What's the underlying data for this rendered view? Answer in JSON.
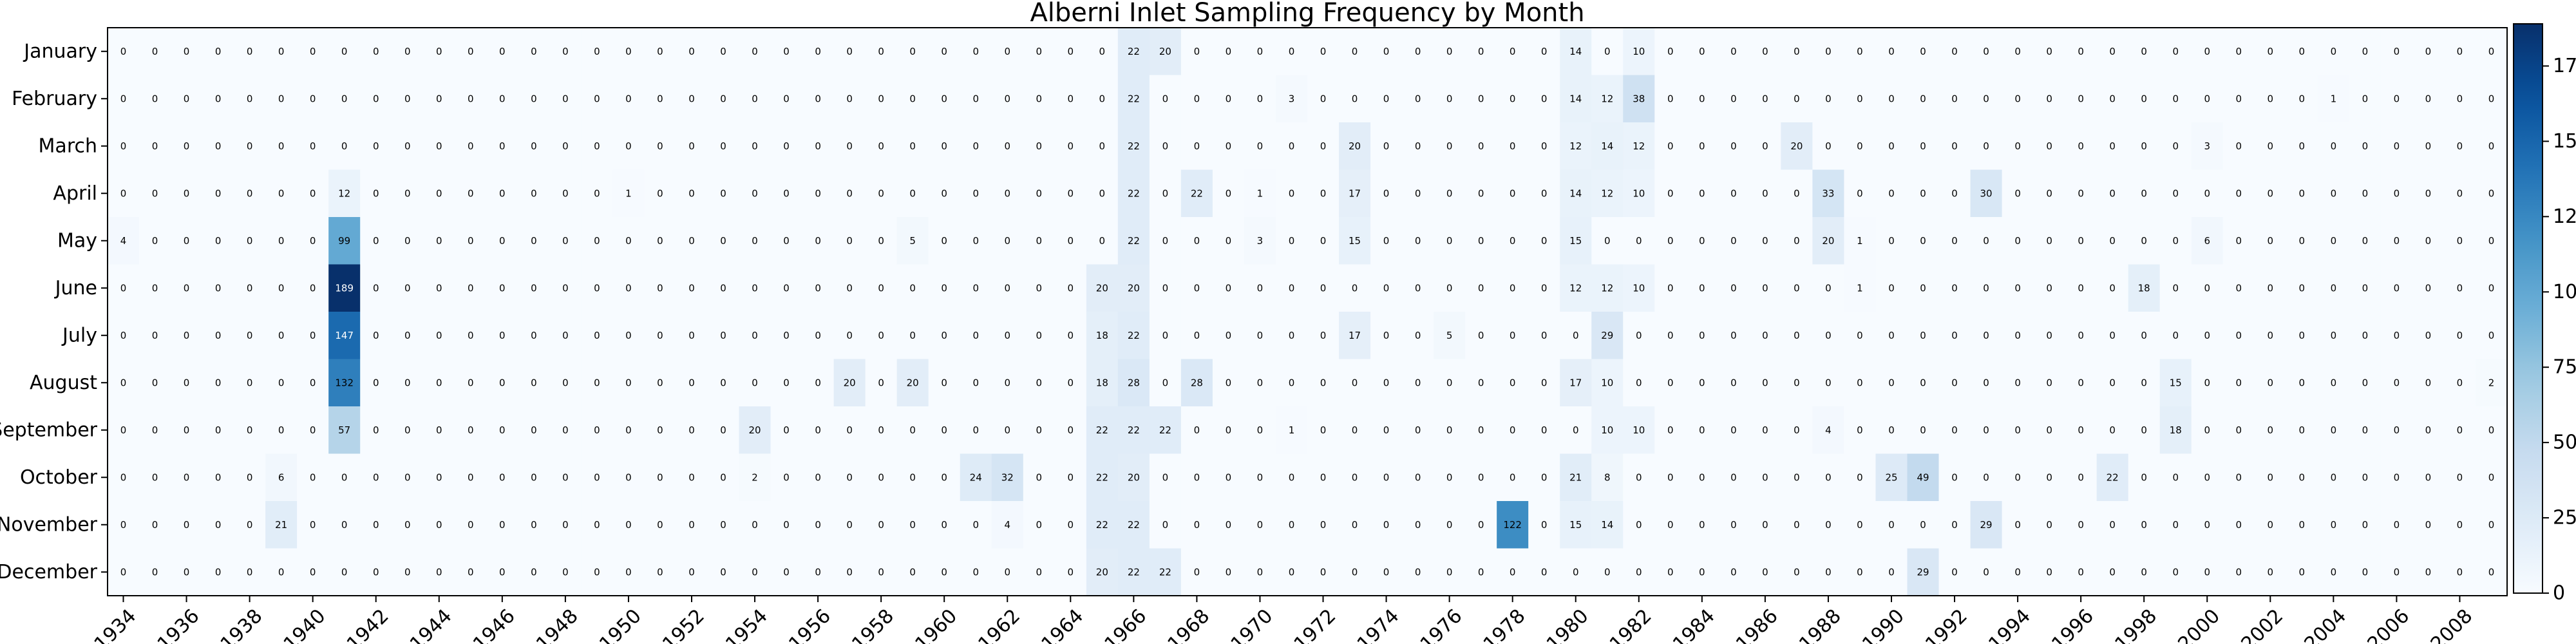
{
  "chart_data": {
    "type": "heatmap",
    "title": "Alberni Inlet Sampling Frequency by Month",
    "xlabel": "",
    "ylabel": "",
    "colormap": "Blues",
    "colorbar": {
      "min": 0,
      "max": 189,
      "ticks": [
        0,
        25,
        50,
        75,
        100,
        125,
        150,
        175
      ]
    },
    "years": [
      1934,
      1935,
      1936,
      1937,
      1938,
      1939,
      1940,
      1941,
      1942,
      1943,
      1944,
      1945,
      1946,
      1947,
      1948,
      1949,
      1950,
      1951,
      1952,
      1953,
      1954,
      1955,
      1956,
      1957,
      1958,
      1959,
      1960,
      1961,
      1962,
      1963,
      1964,
      1965,
      1966,
      1967,
      1968,
      1969,
      1970,
      1971,
      1972,
      1973,
      1974,
      1975,
      1976,
      1977,
      1978,
      1979,
      1980,
      1981,
      1982,
      1983,
      1984,
      1985,
      1986,
      1987,
      1988,
      1989,
      1990,
      1991,
      1992,
      1993,
      1994,
      1995,
      1996,
      1997,
      1998,
      1999,
      2000,
      2001,
      2002,
      2003,
      2004,
      2005,
      2006,
      2007,
      2008,
      2009
    ],
    "x_tick_labels": [
      "1934",
      "1936",
      "1938",
      "1940",
      "1942",
      "1944",
      "1946",
      "1948",
      "1950",
      "1952",
      "1954",
      "1956",
      "1958",
      "1960",
      "1962",
      "1964",
      "1966",
      "1968",
      "1970",
      "1972",
      "1974",
      "1976",
      "1978",
      "1980",
      "1982",
      "1984",
      "1986",
      "1988",
      "1990",
      "1992",
      "1994",
      "1996",
      "1998",
      "2000",
      "2002",
      "2004",
      "2006",
      "2008"
    ],
    "months": [
      "January",
      "February",
      "March",
      "April",
      "May",
      "June",
      "July",
      "August",
      "September",
      "October",
      "November",
      "December"
    ],
    "values": [
      [
        0,
        0,
        0,
        0,
        0,
        0,
        0,
        0,
        0,
        0,
        0,
        0,
        0,
        0,
        0,
        0,
        0,
        0,
        0,
        0,
        0,
        0,
        0,
        0,
        0,
        0,
        0,
        0,
        0,
        0,
        0,
        0,
        22,
        20,
        0,
        0,
        0,
        0,
        0,
        0,
        0,
        0,
        0,
        0,
        0,
        0,
        14,
        0,
        10,
        0,
        0,
        0,
        0,
        0,
        0,
        0,
        0,
        0,
        0,
        0,
        0,
        0,
        0,
        0,
        0,
        0,
        0,
        0,
        0,
        0,
        0,
        0,
        0,
        0,
        0,
        0
      ],
      [
        0,
        0,
        0,
        0,
        0,
        0,
        0,
        0,
        0,
        0,
        0,
        0,
        0,
        0,
        0,
        0,
        0,
        0,
        0,
        0,
        0,
        0,
        0,
        0,
        0,
        0,
        0,
        0,
        0,
        0,
        0,
        0,
        22,
        0,
        0,
        0,
        0,
        3,
        0,
        0,
        0,
        0,
        0,
        0,
        0,
        0,
        14,
        12,
        38,
        0,
        0,
        0,
        0,
        0,
        0,
        0,
        0,
        0,
        0,
        0,
        0,
        0,
        0,
        0,
        0,
        0,
        0,
        0,
        0,
        0,
        1,
        0,
        0,
        0,
        0,
        0
      ],
      [
        0,
        0,
        0,
        0,
        0,
        0,
        0,
        0,
        0,
        0,
        0,
        0,
        0,
        0,
        0,
        0,
        0,
        0,
        0,
        0,
        0,
        0,
        0,
        0,
        0,
        0,
        0,
        0,
        0,
        0,
        0,
        0,
        22,
        0,
        0,
        0,
        0,
        0,
        0,
        20,
        0,
        0,
        0,
        0,
        0,
        0,
        12,
        14,
        12,
        0,
        0,
        0,
        0,
        20,
        0,
        0,
        0,
        0,
        0,
        0,
        0,
        0,
        0,
        0,
        0,
        0,
        3,
        0,
        0,
        0,
        0,
        0,
        0,
        0,
        0,
        0
      ],
      [
        0,
        0,
        0,
        0,
        0,
        0,
        0,
        12,
        0,
        0,
        0,
        0,
        0,
        0,
        0,
        0,
        1,
        0,
        0,
        0,
        0,
        0,
        0,
        0,
        0,
        0,
        0,
        0,
        0,
        0,
        0,
        0,
        22,
        0,
        22,
        0,
        1,
        0,
        0,
        17,
        0,
        0,
        0,
        0,
        0,
        0,
        14,
        12,
        10,
        0,
        0,
        0,
        0,
        0,
        33,
        0,
        0,
        0,
        0,
        30,
        0,
        0,
        0,
        0,
        0,
        0,
        0,
        0,
        0,
        0,
        0,
        0,
        0,
        0,
        0,
        0
      ],
      [
        4,
        0,
        0,
        0,
        0,
        0,
        0,
        99,
        0,
        0,
        0,
        0,
        0,
        0,
        0,
        0,
        0,
        0,
        0,
        0,
        0,
        0,
        0,
        0,
        0,
        5,
        0,
        0,
        0,
        0,
        0,
        0,
        22,
        0,
        0,
        0,
        3,
        0,
        0,
        15,
        0,
        0,
        0,
        0,
        0,
        0,
        15,
        0,
        0,
        0,
        0,
        0,
        0,
        0,
        20,
        1,
        0,
        0,
        0,
        0,
        0,
        0,
        0,
        0,
        0,
        0,
        6,
        0,
        0,
        0,
        0,
        0,
        0,
        0,
        0,
        0
      ],
      [
        0,
        0,
        0,
        0,
        0,
        0,
        0,
        189,
        0,
        0,
        0,
        0,
        0,
        0,
        0,
        0,
        0,
        0,
        0,
        0,
        0,
        0,
        0,
        0,
        0,
        0,
        0,
        0,
        0,
        0,
        0,
        20,
        20,
        0,
        0,
        0,
        0,
        0,
        0,
        0,
        0,
        0,
        0,
        0,
        0,
        0,
        12,
        12,
        10,
        0,
        0,
        0,
        0,
        0,
        0,
        1,
        0,
        0,
        0,
        0,
        0,
        0,
        0,
        0,
        18,
        0,
        0,
        0,
        0,
        0,
        0,
        0,
        0,
        0,
        0,
        0
      ],
      [
        0,
        0,
        0,
        0,
        0,
        0,
        0,
        147,
        0,
        0,
        0,
        0,
        0,
        0,
        0,
        0,
        0,
        0,
        0,
        0,
        0,
        0,
        0,
        0,
        0,
        0,
        0,
        0,
        0,
        0,
        0,
        18,
        22,
        0,
        0,
        0,
        0,
        0,
        0,
        17,
        0,
        0,
        5,
        0,
        0,
        0,
        0,
        29,
        0,
        0,
        0,
        0,
        0,
        0,
        0,
        0,
        0,
        0,
        0,
        0,
        0,
        0,
        0,
        0,
        0,
        0,
        0,
        0,
        0,
        0,
        0,
        0,
        0,
        0,
        0,
        0
      ],
      [
        0,
        0,
        0,
        0,
        0,
        0,
        0,
        132,
        0,
        0,
        0,
        0,
        0,
        0,
        0,
        0,
        0,
        0,
        0,
        0,
        0,
        0,
        0,
        20,
        0,
        20,
        0,
        0,
        0,
        0,
        0,
        18,
        28,
        0,
        28,
        0,
        0,
        0,
        0,
        0,
        0,
        0,
        0,
        0,
        0,
        0,
        17,
        10,
        0,
        0,
        0,
        0,
        0,
        0,
        0,
        0,
        0,
        0,
        0,
        0,
        0,
        0,
        0,
        0,
        0,
        15,
        0,
        0,
        0,
        0,
        0,
        0,
        0,
        0,
        0,
        2
      ],
      [
        0,
        0,
        0,
        0,
        0,
        0,
        0,
        57,
        0,
        0,
        0,
        0,
        0,
        0,
        0,
        0,
        0,
        0,
        0,
        0,
        20,
        0,
        0,
        0,
        0,
        0,
        0,
        0,
        0,
        0,
        0,
        22,
        22,
        22,
        0,
        0,
        0,
        1,
        0,
        0,
        0,
        0,
        0,
        0,
        0,
        0,
        0,
        10,
        10,
        0,
        0,
        0,
        0,
        0,
        4,
        0,
        0,
        0,
        0,
        0,
        0,
        0,
        0,
        0,
        0,
        18,
        0,
        0,
        0,
        0,
        0,
        0,
        0,
        0,
        0,
        0
      ],
      [
        0,
        0,
        0,
        0,
        0,
        6,
        0,
        0,
        0,
        0,
        0,
        0,
        0,
        0,
        0,
        0,
        0,
        0,
        0,
        0,
        2,
        0,
        0,
        0,
        0,
        0,
        0,
        24,
        32,
        0,
        0,
        22,
        20,
        0,
        0,
        0,
        0,
        0,
        0,
        0,
        0,
        0,
        0,
        0,
        0,
        0,
        21,
        8,
        0,
        0,
        0,
        0,
        0,
        0,
        0,
        0,
        25,
        49,
        0,
        0,
        0,
        0,
        0,
        22,
        0,
        0,
        0,
        0,
        0,
        0,
        0,
        0,
        0,
        0,
        0,
        0
      ],
      [
        0,
        0,
        0,
        0,
        0,
        21,
        0,
        0,
        0,
        0,
        0,
        0,
        0,
        0,
        0,
        0,
        0,
        0,
        0,
        0,
        0,
        0,
        0,
        0,
        0,
        0,
        0,
        0,
        4,
        0,
        0,
        22,
        22,
        0,
        0,
        0,
        0,
        0,
        0,
        0,
        0,
        0,
        0,
        0,
        122,
        0,
        15,
        14,
        0,
        0,
        0,
        0,
        0,
        0,
        0,
        0,
        0,
        0,
        0,
        29,
        0,
        0,
        0,
        0,
        0,
        0,
        0,
        0,
        0,
        0,
        0,
        0,
        0,
        0,
        0,
        0
      ],
      [
        0,
        0,
        0,
        0,
        0,
        0,
        0,
        0,
        0,
        0,
        0,
        0,
        0,
        0,
        0,
        0,
        0,
        0,
        0,
        0,
        0,
        0,
        0,
        0,
        0,
        0,
        0,
        0,
        0,
        0,
        0,
        20,
        22,
        22,
        0,
        0,
        0,
        0,
        0,
        0,
        0,
        0,
        0,
        0,
        0,
        0,
        0,
        0,
        0,
        0,
        0,
        0,
        0,
        0,
        0,
        0,
        0,
        29,
        0,
        0,
        0,
        0,
        0,
        0,
        0,
        0,
        0,
        0,
        0,
        0,
        0,
        0,
        0,
        0,
        0,
        0
      ]
    ]
  }
}
